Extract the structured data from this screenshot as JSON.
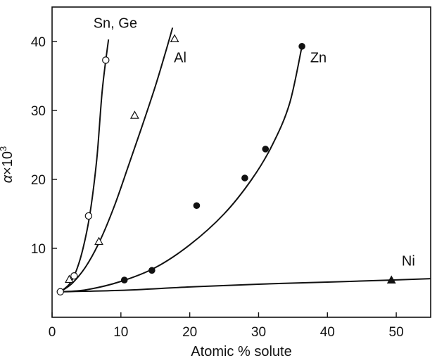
{
  "chart_data": {
    "type": "scatter",
    "title": "",
    "xlabel": "Atomic % solute",
    "ylabel_symbol": "α",
    "ylabel_rest": "×10",
    "ylabel_exp": "3",
    "xlim": [
      0,
      55
    ],
    "ylim": [
      0,
      45
    ],
    "x_ticks": [
      0,
      10,
      20,
      30,
      40,
      50
    ],
    "y_ticks": [
      10,
      20,
      30,
      40
    ],
    "grid": false,
    "legend": "none; series labelled directly at curve ends",
    "origin_point": {
      "x": 1.2,
      "y": 3.7,
      "marker": "open-circle"
    },
    "series": [
      {
        "name": "Sn, Ge",
        "marker": "open-circle",
        "label_at": {
          "x": 6,
          "y": 42
        },
        "points": [
          {
            "x": 3.2,
            "y": 6.0
          },
          {
            "x": 5.3,
            "y": 14.7
          },
          {
            "x": 7.8,
            "y": 37.3
          }
        ],
        "curve": [
          {
            "x": 1.2,
            "y": 3.7
          },
          {
            "x": 2.5,
            "y": 4.8
          },
          {
            "x": 3.5,
            "y": 6.7
          },
          {
            "x": 4.5,
            "y": 10.0
          },
          {
            "x": 5.5,
            "y": 15.0
          },
          {
            "x": 6.5,
            "y": 23.0
          },
          {
            "x": 7.3,
            "y": 33.0
          },
          {
            "x": 8.2,
            "y": 40.3
          }
        ]
      },
      {
        "name": "Al",
        "marker": "open-triangle",
        "label_at": {
          "x": 17.7,
          "y": 37
        },
        "points": [
          {
            "x": 2.5,
            "y": 5.5
          },
          {
            "x": 6.8,
            "y": 11.0
          },
          {
            "x": 12.0,
            "y": 29.3
          },
          {
            "x": 17.8,
            "y": 40.4
          }
        ],
        "curve": [
          {
            "x": 1.2,
            "y": 3.7
          },
          {
            "x": 3.0,
            "y": 5.0
          },
          {
            "x": 5.0,
            "y": 7.5
          },
          {
            "x": 7.0,
            "y": 11.2
          },
          {
            "x": 9.0,
            "y": 16.0
          },
          {
            "x": 11.0,
            "y": 21.7
          },
          {
            "x": 13.0,
            "y": 27.5
          },
          {
            "x": 15.0,
            "y": 33.5
          },
          {
            "x": 16.5,
            "y": 38.5
          },
          {
            "x": 17.5,
            "y": 42.0
          }
        ]
      },
      {
        "name": "Zn",
        "marker": "filled-circle",
        "label_at": {
          "x": 37.5,
          "y": 37
        },
        "points": [
          {
            "x": 10.5,
            "y": 5.4
          },
          {
            "x": 14.5,
            "y": 6.8
          },
          {
            "x": 21.0,
            "y": 16.2
          },
          {
            "x": 28.0,
            "y": 20.2
          },
          {
            "x": 31.0,
            "y": 24.4
          },
          {
            "x": 36.3,
            "y": 39.3
          }
        ],
        "curve": [
          {
            "x": 1.2,
            "y": 3.7
          },
          {
            "x": 5.0,
            "y": 4.0
          },
          {
            "x": 10.0,
            "y": 5.2
          },
          {
            "x": 15.0,
            "y": 7.2
          },
          {
            "x": 20.0,
            "y": 10.5
          },
          {
            "x": 25.0,
            "y": 15.0
          },
          {
            "x": 29.0,
            "y": 20.0
          },
          {
            "x": 32.0,
            "y": 25.0
          },
          {
            "x": 34.5,
            "y": 31.0
          },
          {
            "x": 36.3,
            "y": 39.3
          }
        ]
      },
      {
        "name": "Ni",
        "marker": "filled-triangle",
        "label_at": {
          "x": 50.8,
          "y": 7.5
        },
        "points": [
          {
            "x": 49.3,
            "y": 5.4
          }
        ],
        "curve": [
          {
            "x": 1.2,
            "y": 3.7
          },
          {
            "x": 10.0,
            "y": 3.9
          },
          {
            "x": 20.0,
            "y": 4.4
          },
          {
            "x": 30.0,
            "y": 4.8
          },
          {
            "x": 40.0,
            "y": 5.1
          },
          {
            "x": 49.3,
            "y": 5.4
          },
          {
            "x": 55.0,
            "y": 5.6
          }
        ]
      }
    ]
  }
}
